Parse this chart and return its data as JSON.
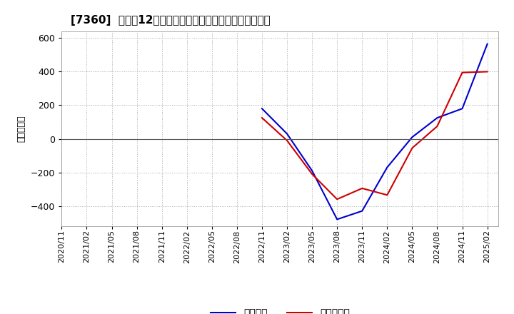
{
  "title": "[7360]  利益の12か月移動合計の対前年同期増減額の推移",
  "ylabel": "（百万円）",
  "legend_labels": [
    "経常利益",
    "当期純利益"
  ],
  "line_colors": [
    "#0000cc",
    "#cc0000"
  ],
  "background_color": "#ffffff",
  "grid_color": "#aaaaaa",
  "ylim": [
    -520,
    640
  ],
  "yticks": [
    -400,
    -200,
    0,
    200,
    400,
    600
  ],
  "x_labels": [
    "2020/11",
    "2021/02",
    "2021/05",
    "2021/08",
    "2021/11",
    "2022/02",
    "2022/05",
    "2022/08",
    "2022/11",
    "2023/02",
    "2023/05",
    "2023/08",
    "2023/11",
    "2024/02",
    "2024/05",
    "2024/08",
    "2024/11",
    "2025/02"
  ],
  "operating_profit": [
    null,
    null,
    null,
    null,
    null,
    null,
    null,
    null,
    180,
    30,
    -190,
    -480,
    -430,
    -170,
    10,
    125,
    180,
    565
  ],
  "net_profit": [
    null,
    null,
    null,
    null,
    null,
    null,
    null,
    null,
    125,
    -10,
    -210,
    -360,
    -295,
    -335,
    -55,
    75,
    395,
    400
  ]
}
